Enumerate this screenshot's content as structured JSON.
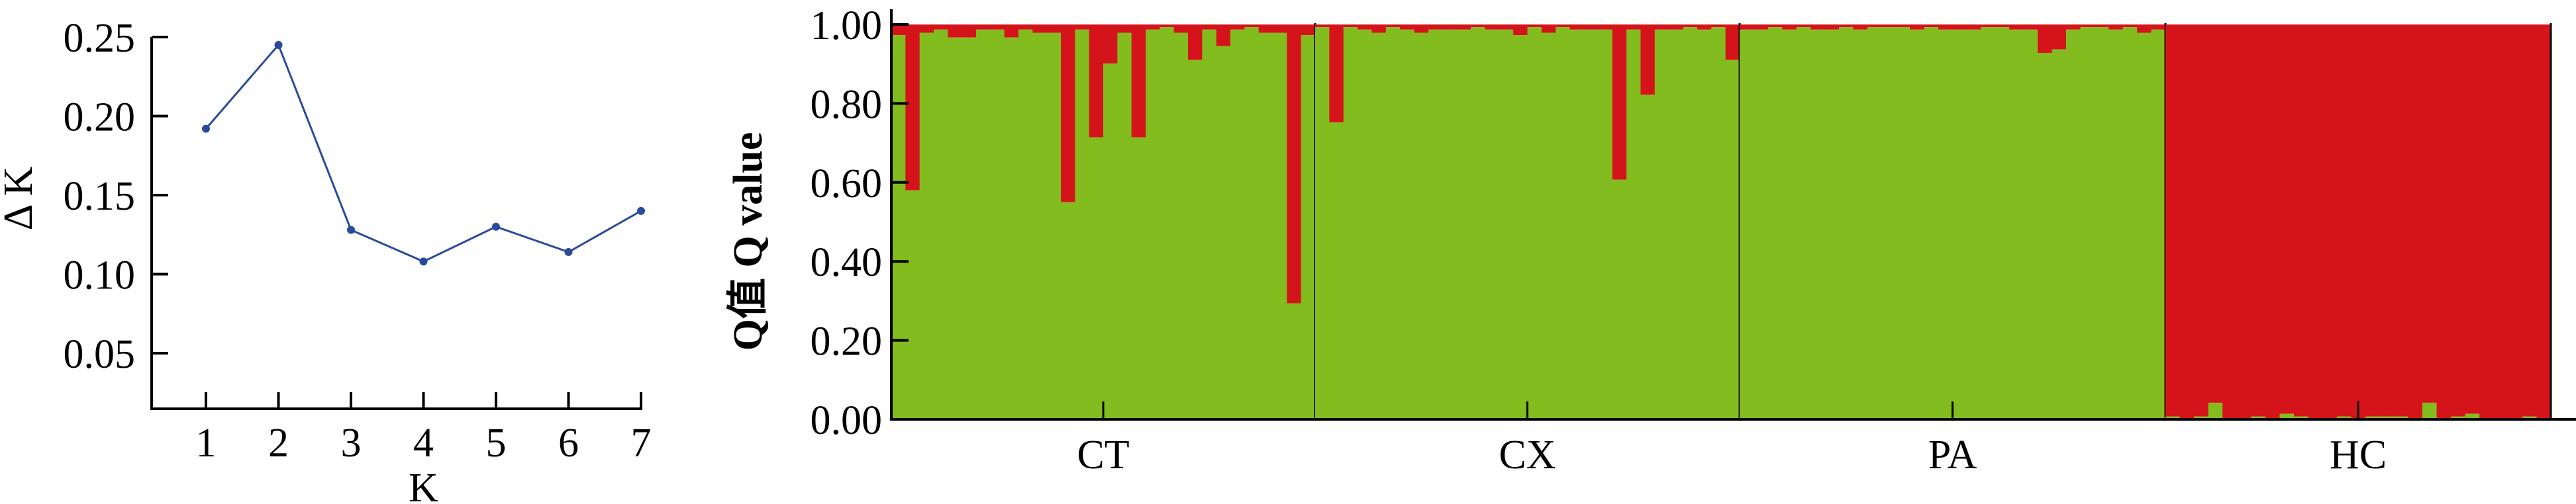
{
  "colors": {
    "line": "#2a4b9b",
    "cluster_green": "#83bc1e",
    "cluster_red": "#d4131a",
    "axis": "#000000"
  },
  "chart_data": [
    {
      "type": "line",
      "xlabel": "K",
      "ylabel": "Δ K",
      "x": [
        1,
        2,
        3,
        4,
        5,
        6,
        7
      ],
      "y": [
        0.192,
        0.245,
        0.128,
        0.108,
        0.13,
        0.114,
        0.14
      ],
      "yticks": [
        "0.05",
        "0.10",
        "0.15",
        "0.20",
        "0.25"
      ],
      "ytick_values": [
        0.05,
        0.1,
        0.15,
        0.2,
        0.25
      ],
      "xticks": [
        "1",
        "2",
        "3",
        "4",
        "5",
        "6",
        "7"
      ],
      "ylim": [
        0.02,
        0.25
      ],
      "grid": false
    },
    {
      "type": "bar",
      "stacked": true,
      "ylabel": "Q值 Q value",
      "yticks": [
        "0.00",
        "0.20",
        "0.40",
        "0.60",
        "0.80",
        "1.00"
      ],
      "ytick_values": [
        0,
        0.2,
        0.4,
        0.6,
        0.8,
        1.0
      ],
      "ylim": [
        0,
        1
      ],
      "grid": false,
      "groups": [
        {
          "label": "CT",
          "green_q": [
            0.973,
            0.58,
            0.979,
            0.987,
            0.967,
            0.967,
            0.987,
            0.987,
            0.967,
            0.987,
            0.979,
            0.979,
            0.55,
            0.987,
            0.714,
            0.901,
            0.979,
            0.714,
            0.987,
            0.993,
            0.979,
            0.91,
            0.987,
            0.945,
            0.987,
            0.993,
            0.979,
            0.979,
            0.294,
            0.973
          ]
        },
        {
          "label": "CX",
          "green_q": [
            0.993,
            0.752,
            0.993,
            0.987,
            0.979,
            0.993,
            0.987,
            0.979,
            0.987,
            0.987,
            0.987,
            0.993,
            0.987,
            0.987,
            0.973,
            0.993,
            0.979,
            0.993,
            0.987,
            0.987,
            0.987,
            0.607,
            0.987,
            0.822,
            0.987,
            0.987,
            0.993,
            0.987,
            0.993,
            0.91
          ]
        },
        {
          "label": "PA",
          "green_q": [
            0.987,
            0.987,
            0.993,
            0.987,
            0.993,
            0.987,
            0.987,
            0.993,
            0.987,
            0.993,
            0.993,
            0.993,
            0.987,
            0.993,
            0.987,
            0.987,
            0.987,
            0.993,
            0.993,
            0.987,
            0.987,
            0.928,
            0.937,
            0.987,
            0.993,
            0.993,
            0.987,
            0.993,
            0.979,
            0.987
          ]
        },
        {
          "label": "HC",
          "green_q": [
            0.007,
            0,
            0.007,
            0.042,
            0,
            0,
            0.007,
            0,
            0.014,
            0.007,
            0,
            0,
            0.007,
            0,
            0.007,
            0.007,
            0.007,
            0,
            0.042,
            0,
            0.007,
            0.014,
            0,
            0,
            0,
            0.007,
            0
          ]
        }
      ]
    }
  ]
}
